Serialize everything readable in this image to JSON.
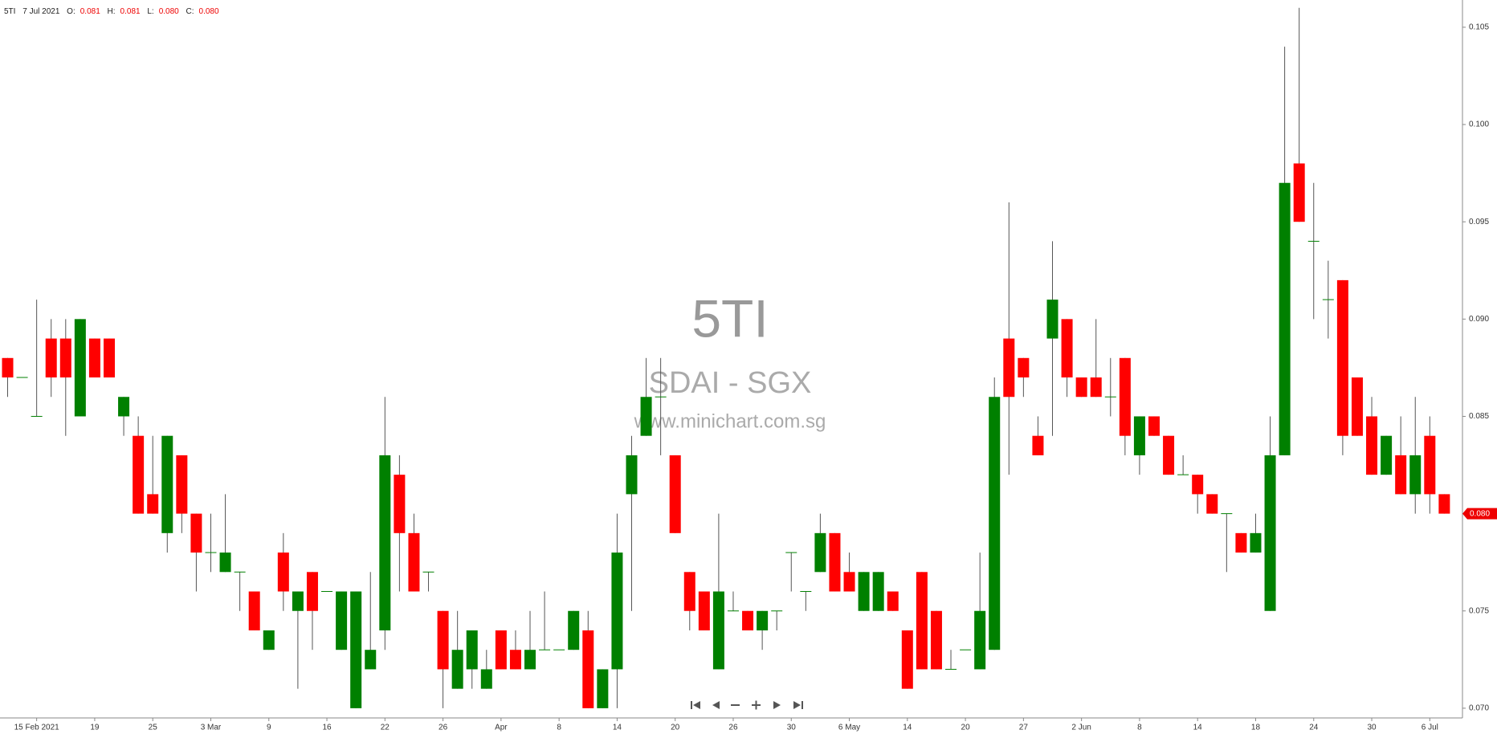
{
  "header": {
    "symbol": "5TI",
    "date": "7 Jul 2021",
    "fields": [
      {
        "name": "O:",
        "value": "0.081"
      },
      {
        "name": "H:",
        "value": "0.081"
      },
      {
        "name": "L:",
        "value": "0.080"
      },
      {
        "name": "C:",
        "value": "0.080"
      }
    ]
  },
  "watermark": {
    "code": "5TI",
    "name": "SDAI - SGX",
    "site": "www.minichart.com.sg"
  },
  "chart_data": {
    "type": "candlestick",
    "categories": [
      null,
      null,
      "15 Feb 2021",
      null,
      null,
      null,
      "19",
      null,
      null,
      null,
      "25",
      null,
      null,
      null,
      "3 Mar",
      null,
      null,
      null,
      "9",
      null,
      null,
      null,
      "16",
      null,
      null,
      null,
      "22",
      null,
      null,
      null,
      "26",
      null,
      null,
      null,
      "Apr",
      null,
      null,
      null,
      "8",
      null,
      null,
      null,
      "14",
      null,
      null,
      null,
      "20",
      null,
      null,
      null,
      "26",
      null,
      null,
      null,
      "30",
      null,
      null,
      null,
      "6 May",
      null,
      null,
      null,
      "14",
      null,
      null,
      null,
      "20",
      null,
      null,
      null,
      "27",
      null,
      null,
      null,
      "2 Jun",
      null,
      null,
      null,
      "8",
      null,
      null,
      null,
      "14",
      null,
      null,
      null,
      "18",
      null,
      null,
      null,
      "24",
      null,
      null,
      null,
      "30",
      null,
      null,
      null,
      "6 Jul",
      null
    ],
    "open": [
      0.088,
      0.087,
      0.085,
      0.089,
      0.089,
      0.085,
      0.089,
      0.089,
      0.085,
      0.084,
      0.081,
      0.079,
      0.083,
      0.08,
      0.078,
      0.077,
      0.077,
      0.076,
      0.073,
      0.078,
      0.075,
      0.077,
      0.076,
      0.073,
      0.07,
      0.072,
      0.074,
      0.082,
      0.079,
      0.077,
      0.075,
      0.071,
      0.072,
      0.071,
      0.074,
      0.073,
      0.072,
      0.073,
      0.073,
      0.073,
      0.074,
      0.07,
      0.072,
      0.081,
      0.084,
      0.086,
      0.083,
      0.077,
      0.076,
      0.072,
      0.075,
      0.075,
      0.074,
      0.075,
      0.078,
      0.076,
      0.077,
      0.079,
      0.077,
      0.075,
      0.075,
      0.076,
      0.074,
      0.077,
      0.075,
      0.072,
      0.073,
      0.072,
      0.073,
      0.089,
      0.088,
      0.084,
      0.089,
      0.09,
      0.087,
      0.087,
      0.086,
      0.088,
      0.083,
      0.085,
      0.084,
      0.082,
      0.082,
      0.081,
      0.08,
      0.079,
      0.078,
      0.075,
      0.083,
      0.098,
      0.094,
      0.091,
      0.092,
      0.087,
      0.085,
      0.082,
      0.083,
      0.081,
      0.084,
      0.081
    ],
    "high": [
      0.088,
      0.087,
      0.091,
      0.09,
      0.09,
      0.09,
      0.089,
      0.089,
      0.086,
      0.085,
      0.084,
      0.084,
      0.083,
      0.08,
      0.08,
      0.081,
      0.077,
      0.076,
      0.074,
      0.079,
      0.076,
      0.077,
      0.076,
      0.076,
      0.076,
      0.077,
      0.086,
      0.083,
      0.08,
      0.077,
      0.075,
      0.075,
      0.074,
      0.073,
      0.074,
      0.074,
      0.075,
      0.076,
      0.073,
      0.075,
      0.075,
      0.072,
      0.08,
      0.084,
      0.088,
      0.088,
      0.083,
      0.077,
      0.076,
      0.08,
      0.076,
      0.075,
      0.075,
      0.075,
      0.078,
      0.076,
      0.08,
      0.079,
      0.078,
      0.077,
      0.077,
      0.076,
      0.074,
      0.077,
      0.075,
      0.073,
      0.073,
      0.078,
      0.087,
      0.096,
      0.088,
      0.085,
      0.094,
      0.09,
      0.087,
      0.09,
      0.088,
      0.088,
      0.085,
      0.085,
      0.084,
      0.083,
      0.082,
      0.081,
      0.08,
      0.079,
      0.08,
      0.085,
      0.104,
      0.106,
      0.097,
      0.093,
      0.092,
      0.087,
      0.086,
      0.084,
      0.085,
      0.086,
      0.085,
      0.081
    ],
    "low": [
      0.086,
      0.087,
      0.085,
      0.086,
      0.084,
      0.085,
      0.087,
      0.087,
      0.084,
      0.08,
      0.08,
      0.078,
      0.079,
      0.076,
      0.077,
      0.077,
      0.075,
      0.074,
      0.073,
      0.075,
      0.071,
      0.073,
      0.076,
      0.073,
      0.07,
      0.072,
      0.073,
      0.076,
      0.076,
      0.076,
      0.07,
      0.071,
      0.071,
      0.071,
      0.072,
      0.072,
      0.072,
      0.073,
      0.073,
      0.073,
      0.07,
      0.07,
      0.07,
      0.075,
      0.084,
      0.083,
      0.079,
      0.074,
      0.074,
      0.072,
      0.075,
      0.074,
      0.073,
      0.074,
      0.076,
      0.075,
      0.077,
      0.076,
      0.076,
      0.075,
      0.075,
      0.075,
      0.071,
      0.072,
      0.072,
      0.072,
      0.073,
      0.072,
      0.073,
      0.082,
      0.086,
      0.083,
      0.084,
      0.086,
      0.086,
      0.086,
      0.085,
      0.083,
      0.082,
      0.084,
      0.082,
      0.082,
      0.08,
      0.08,
      0.077,
      0.078,
      0.078,
      0.075,
      0.083,
      0.095,
      0.09,
      0.089,
      0.083,
      0.084,
      0.082,
      0.082,
      0.081,
      0.08,
      0.08,
      0.08
    ],
    "close": [
      0.087,
      0.087,
      0.085,
      0.087,
      0.087,
      0.09,
      0.087,
      0.087,
      0.086,
      0.08,
      0.08,
      0.084,
      0.08,
      0.078,
      0.078,
      0.078,
      0.077,
      0.074,
      0.074,
      0.076,
      0.076,
      0.075,
      0.076,
      0.076,
      0.076,
      0.073,
      0.083,
      0.079,
      0.076,
      0.077,
      0.072,
      0.073,
      0.074,
      0.072,
      0.072,
      0.072,
      0.073,
      0.073,
      0.073,
      0.075,
      0.07,
      0.072,
      0.078,
      0.083,
      0.086,
      0.086,
      0.079,
      0.075,
      0.074,
      0.076,
      0.075,
      0.074,
      0.075,
      0.075,
      0.078,
      0.076,
      0.079,
      0.076,
      0.076,
      0.077,
      0.077,
      0.075,
      0.071,
      0.072,
      0.072,
      0.072,
      0.073,
      0.075,
      0.086,
      0.086,
      0.087,
      0.083,
      0.091,
      0.087,
      0.086,
      0.086,
      0.086,
      0.084,
      0.085,
      0.084,
      0.082,
      0.082,
      0.081,
      0.08,
      0.08,
      0.078,
      0.079,
      0.083,
      0.097,
      0.095,
      0.094,
      0.091,
      0.084,
      0.084,
      0.082,
      0.084,
      0.081,
      0.083,
      0.081,
      0.08
    ],
    "up_color": "#008000",
    "down_color": "#ff0000",
    "ylim": [
      0.0695,
      0.1064
    ],
    "yticks": [
      {
        "value": 0.07,
        "label": "0.070"
      },
      0.075,
      {
        "value": 0.08,
        "label": "0.080"
      },
      0.085,
      {
        "value": 0.09,
        "label": "0.090"
      },
      0.095,
      {
        "value": 0.1,
        "label": "0.100"
      },
      0.105
    ],
    "last_price": {
      "value": 0.08,
      "label": "0.080"
    }
  }
}
